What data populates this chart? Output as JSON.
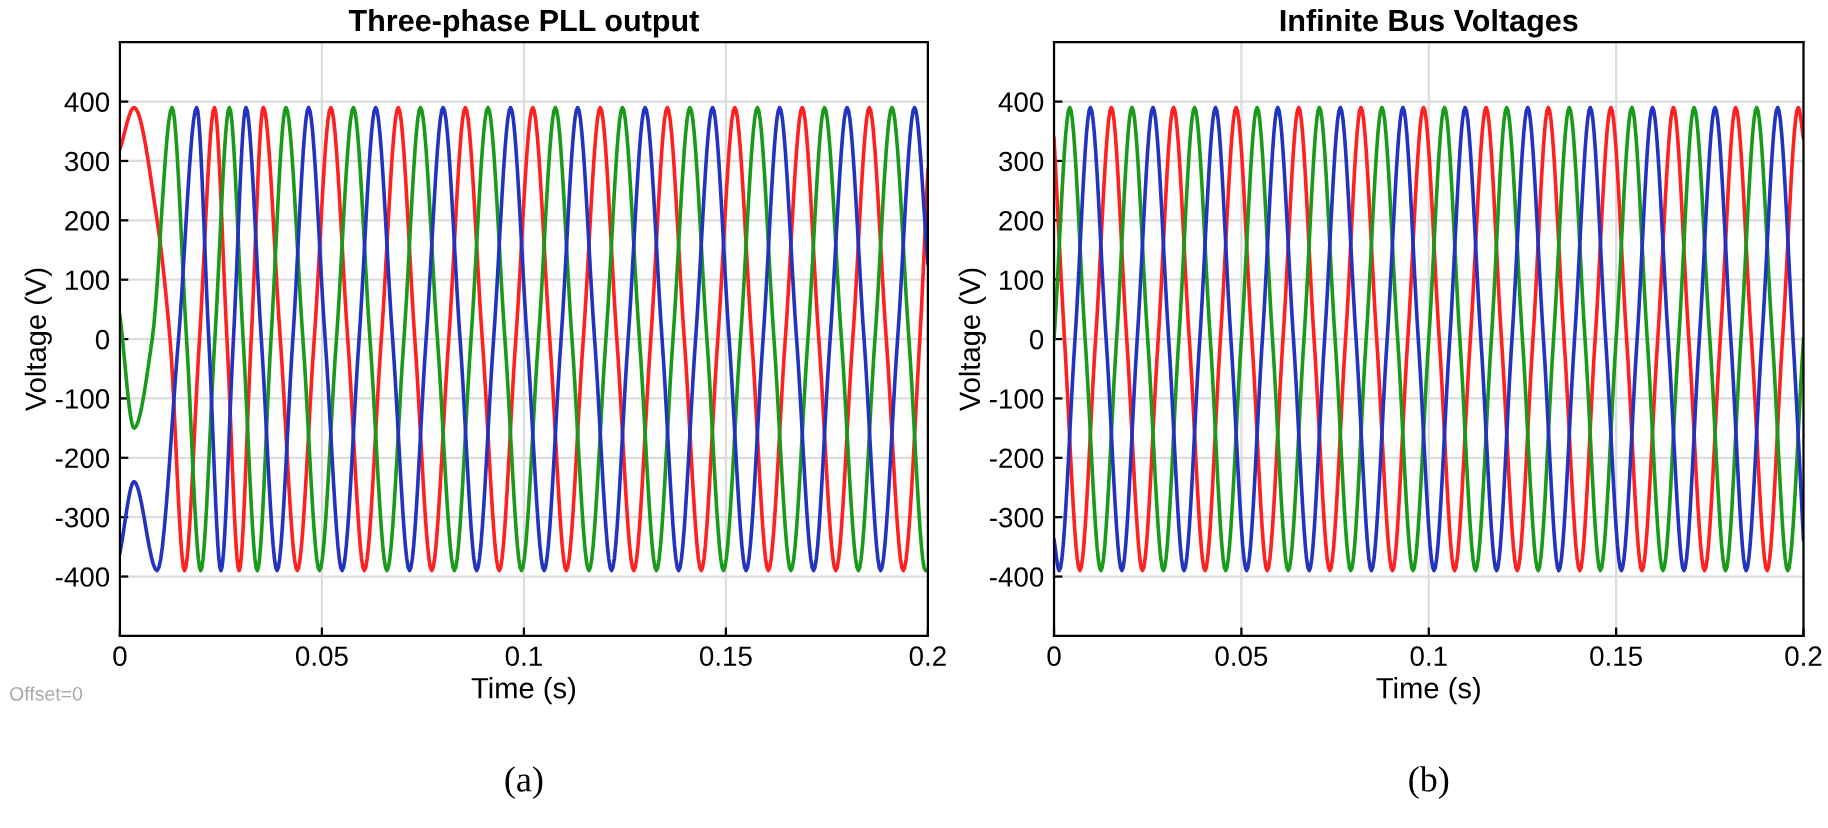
{
  "chart_data": [
    {
      "type": "line",
      "title": "Three-phase PLL output",
      "xlabel": "Time (s)",
      "ylabel": "Voltage (V)",
      "xlim": [
        0,
        0.2
      ],
      "xticks": [
        0,
        0.05,
        0.1,
        0.15,
        0.2
      ],
      "ylim": [
        -500,
        500
      ],
      "yticks": [
        -400,
        -300,
        -200,
        -100,
        0,
        100,
        200,
        300,
        400
      ],
      "grid": true,
      "annotations": [
        "Offset=0",
        "(a)"
      ],
      "series": [
        {
          "color": "#ff2020",
          "x": [
            0,
            0.0035,
            0.0092,
            0.0124,
            0.016,
            0.0197,
            0.0234,
            0.0265,
            0.0295,
            0.0325,
            0.0355,
            0.0397,
            0.0439,
            0.0481,
            0.0522,
            0.0564,
            0.0605,
            0.0647,
            0.0689,
            0.073,
            0.0772,
            0.0814,
            0.0855,
            0.0897,
            0.0939,
            0.098,
            0.1022,
            0.1064,
            0.1105,
            0.1147,
            0.1189,
            0.123,
            0.1272,
            0.1314,
            0.1355,
            0.1397,
            0.1439,
            0.148,
            0.1522,
            0.1564,
            0.1605,
            0.1647,
            0.1689,
            0.173,
            0.1772,
            0.1814,
            0.1855,
            0.1897,
            0.1939,
            0.198,
            0.2
          ],
          "values": [
            320,
            390,
            200,
            0,
            -390,
            0,
            390,
            0,
            -390,
            0,
            390,
            0,
            -390,
            0,
            390,
            0,
            -390,
            0,
            390,
            0,
            -390,
            0,
            390,
            0,
            -390,
            0,
            390,
            0,
            -390,
            0,
            390,
            0,
            -390,
            0,
            390,
            0,
            -390,
            0,
            390,
            0,
            -390,
            0,
            390,
            0,
            -390,
            0,
            390,
            0,
            -390,
            0,
            285
          ]
        },
        {
          "color": "#1a9a1a",
          "x": [
            0,
            0.0035,
            0.008,
            0.0129,
            0.0165,
            0.02,
            0.0235,
            0.0271,
            0.0305,
            0.034,
            0.0374,
            0.0411,
            0.0453,
            0.0494,
            0.0536,
            0.0578,
            0.0619,
            0.0661,
            0.0703,
            0.0744,
            0.0786,
            0.0828,
            0.0869,
            0.0911,
            0.0953,
            0.0994,
            0.1036,
            0.1078,
            0.1119,
            0.1161,
            0.1203,
            0.1244,
            0.1286,
            0.1328,
            0.1369,
            0.1411,
            0.1453,
            0.1494,
            0.1536,
            0.1578,
            0.1619,
            0.1661,
            0.1703,
            0.1744,
            0.1786,
            0.1828,
            0.1869,
            0.1911,
            0.1953,
            0.1994,
            0.2
          ],
          "values": [
            40,
            -150,
            0,
            390,
            0,
            -390,
            0,
            390,
            0,
            -390,
            0,
            390,
            0,
            -390,
            0,
            390,
            0,
            -390,
            0,
            390,
            0,
            -390,
            0,
            390,
            0,
            -390,
            0,
            390,
            0,
            -390,
            0,
            390,
            0,
            -390,
            0,
            390,
            0,
            -390,
            0,
            390,
            0,
            -390,
            0,
            390,
            0,
            -390,
            0,
            390,
            0,
            -390,
            -388
          ]
        },
        {
          "color": "#2233c0",
          "x": [
            0,
            0.0035,
            0.0092,
            0.0145,
            0.019,
            0.022,
            0.025,
            0.0281,
            0.0312,
            0.035,
            0.0389,
            0.0428,
            0.0467,
            0.0508,
            0.055,
            0.0592,
            0.0633,
            0.0675,
            0.0717,
            0.0758,
            0.08,
            0.0842,
            0.0883,
            0.0925,
            0.0967,
            0.1008,
            0.105,
            0.1092,
            0.1133,
            0.1175,
            0.1217,
            0.1258,
            0.13,
            0.1342,
            0.1383,
            0.1425,
            0.1467,
            0.1508,
            0.155,
            0.1592,
            0.1633,
            0.1675,
            0.1717,
            0.1758,
            0.18,
            0.1842,
            0.1883,
            0.1925,
            0.1967,
            0.2
          ],
          "values": [
            -360,
            -240,
            -390,
            0,
            390,
            0,
            -390,
            0,
            390,
            0,
            -390,
            0,
            390,
            0,
            -390,
            0,
            390,
            0,
            -390,
            0,
            390,
            0,
            -390,
            0,
            390,
            0,
            -390,
            0,
            390,
            0,
            -390,
            0,
            390,
            0,
            -390,
            0,
            390,
            0,
            -390,
            0,
            390,
            0,
            -390,
            0,
            390,
            0,
            -390,
            0,
            390,
            127
          ]
        }
      ]
    },
    {
      "type": "line",
      "title": "Infinite Bus Voltages",
      "xlabel": "Time (s)",
      "ylabel": "Voltage (V)",
      "xlim": [
        0,
        0.2
      ],
      "xticks": [
        0,
        0.05,
        0.1,
        0.15,
        0.2
      ],
      "ylim": [
        -500,
        500
      ],
      "yticks": [
        -400,
        -300,
        -200,
        -100,
        0,
        100,
        200,
        300,
        400
      ],
      "grid": true,
      "annotations": [
        "(b)"
      ],
      "series": [
        {
          "color": "#ff2020",
          "x": [
            0,
            0.0028,
            0.0069,
            0.0111,
            0.0153,
            0.0194,
            0.0236,
            0.0278,
            0.0319,
            0.0361,
            0.0403,
            0.0444,
            0.0486,
            0.0528,
            0.0569,
            0.0611,
            0.0653,
            0.0694,
            0.0736,
            0.0778,
            0.0819,
            0.0861,
            0.0903,
            0.0944,
            0.0986,
            0.1028,
            0.1069,
            0.1111,
            0.1153,
            0.1194,
            0.1236,
            0.1278,
            0.1319,
            0.1361,
            0.1403,
            0.1444,
            0.1486,
            0.1528,
            0.1569,
            0.1611,
            0.1653,
            0.1694,
            0.1736,
            0.1778,
            0.1819,
            0.1861,
            0.1903,
            0.1944,
            0.1986,
            0.2
          ],
          "values": [
            338,
            0,
            -390,
            0,
            390,
            0,
            -390,
            0,
            390,
            0,
            -390,
            0,
            390,
            0,
            -390,
            0,
            390,
            0,
            -390,
            0,
            390,
            0,
            -390,
            0,
            390,
            0,
            -390,
            0,
            390,
            0,
            -390,
            0,
            390,
            0,
            -390,
            0,
            390,
            0,
            -390,
            0,
            390,
            0,
            -390,
            0,
            390,
            0,
            -390,
            0,
            390,
            338
          ]
        },
        {
          "color": "#1a9a1a",
          "x": [
            0,
            0.0042,
            0.0083,
            0.0125,
            0.0167,
            0.0208,
            0.025,
            0.0292,
            0.0333,
            0.0375,
            0.0417,
            0.0458,
            0.05,
            0.0542,
            0.0583,
            0.0625,
            0.0667,
            0.0708,
            0.075,
            0.0792,
            0.0833,
            0.0875,
            0.0917,
            0.0958,
            0.1,
            0.1042,
            0.1083,
            0.1125,
            0.1167,
            0.1208,
            0.125,
            0.1292,
            0.1333,
            0.1375,
            0.1417,
            0.1458,
            0.15,
            0.1542,
            0.1583,
            0.1625,
            0.1667,
            0.1708,
            0.175,
            0.1792,
            0.1833,
            0.1875,
            0.1917,
            0.1958,
            0.2
          ],
          "values": [
            0,
            390,
            0,
            -390,
            0,
            390,
            0,
            -390,
            0,
            390,
            0,
            -390,
            0,
            390,
            0,
            -390,
            0,
            390,
            0,
            -390,
            0,
            390,
            0,
            -390,
            0,
            390,
            0,
            -390,
            0,
            390,
            0,
            -390,
            0,
            390,
            0,
            -390,
            0,
            390,
            0,
            -390,
            0,
            390,
            0,
            -390,
            0,
            390,
            0,
            -390,
            0
          ]
        },
        {
          "color": "#2233c0",
          "x": [
            0,
            0.0014,
            0.0056,
            0.0097,
            0.0139,
            0.0181,
            0.0222,
            0.0264,
            0.0306,
            0.0347,
            0.0389,
            0.0431,
            0.0472,
            0.0514,
            0.0556,
            0.0597,
            0.0639,
            0.0681,
            0.0722,
            0.0764,
            0.0806,
            0.0847,
            0.0889,
            0.0931,
            0.0972,
            0.1014,
            0.1056,
            0.1097,
            0.1139,
            0.1181,
            0.1222,
            0.1264,
            0.1306,
            0.1347,
            0.1389,
            0.1431,
            0.1472,
            0.1514,
            0.1556,
            0.1597,
            0.1639,
            0.1681,
            0.1722,
            0.1764,
            0.1806,
            0.1847,
            0.1889,
            0.1931,
            0.1972,
            0.2
          ],
          "values": [
            -338,
            -390,
            0,
            390,
            0,
            -390,
            0,
            390,
            0,
            -390,
            0,
            390,
            0,
            -390,
            0,
            390,
            0,
            -390,
            0,
            390,
            0,
            -390,
            0,
            390,
            0,
            -390,
            0,
            390,
            0,
            -390,
            0,
            390,
            0,
            -390,
            0,
            390,
            0,
            -390,
            0,
            390,
            0,
            -390,
            0,
            390,
            0,
            -390,
            0,
            390,
            0,
            -338
          ]
        }
      ]
    }
  ]
}
